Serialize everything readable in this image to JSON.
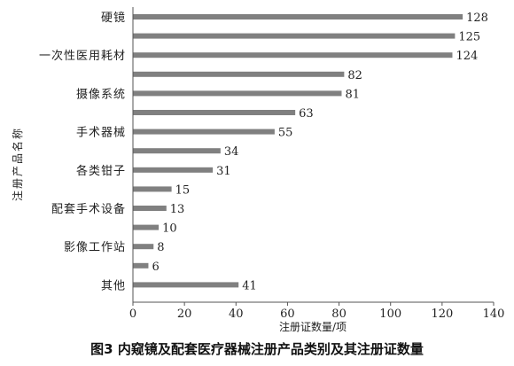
{
  "chart_data": {
    "type": "bar",
    "orientation": "horizontal",
    "categories": [
      "硬镜",
      "",
      "一次性医用耗材",
      "",
      "摄像系统",
      "",
      "手术器械",
      "",
      "各类钳子",
      "",
      "配套手术设备",
      "",
      "影像工作站",
      "",
      "其他"
    ],
    "values": [
      128,
      125,
      124,
      82,
      81,
      63,
      55,
      34,
      31,
      15,
      13,
      10,
      8,
      6,
      41
    ],
    "xlabel": "注册证数量/项",
    "ylabel": "注册产品名称",
    "xlim": [
      0,
      140
    ],
    "xticks": [
      0,
      20,
      40,
      60,
      80,
      100,
      120,
      140
    ],
    "grid": false,
    "bar_color": "#808080"
  },
  "caption": {
    "fig_label": "图3",
    "text": " 内窥镜及配套医疗器械注册产品类别及其注册证数量"
  }
}
